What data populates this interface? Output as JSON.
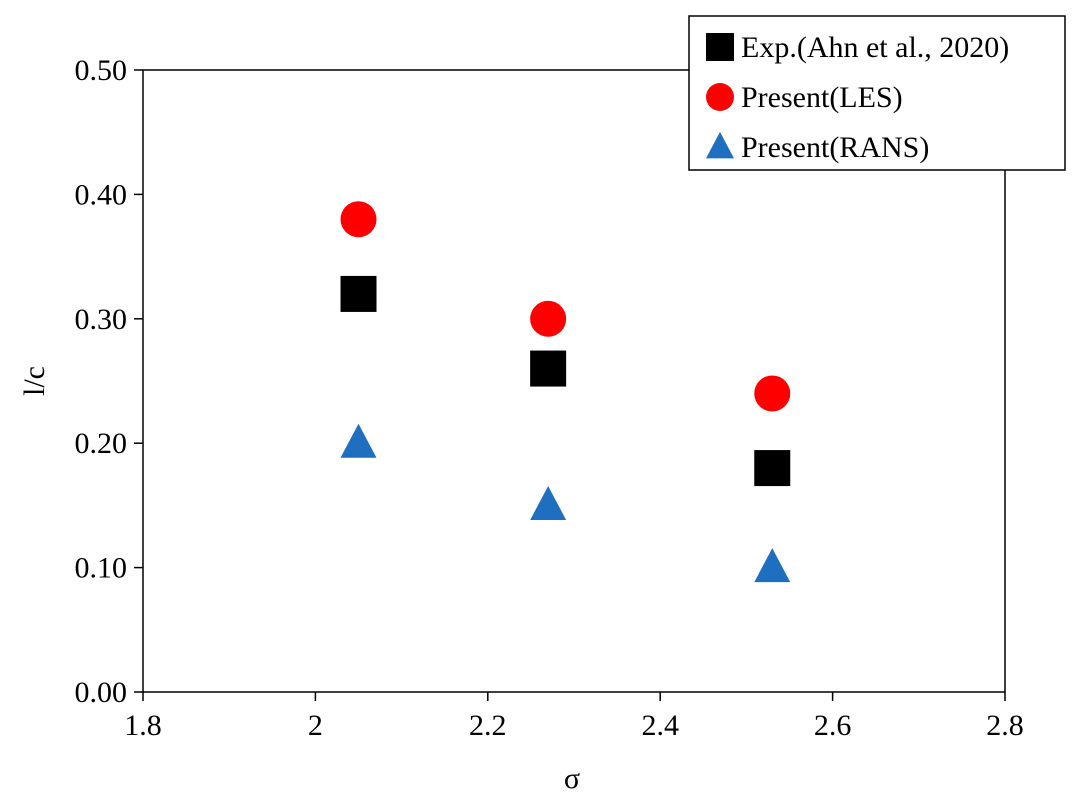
{
  "chart_data": {
    "type": "scatter",
    "title": "",
    "xlabel": "σ",
    "ylabel": "l/c",
    "xlim": [
      1.8,
      2.8
    ],
    "ylim": [
      0.0,
      0.5
    ],
    "xticks": [
      "1.8",
      "2",
      "2.2",
      "2.4",
      "2.6",
      "2.8"
    ],
    "xtick_values": [
      1.8,
      2.0,
      2.2,
      2.4,
      2.6,
      2.8
    ],
    "yticks": [
      "0.00",
      "0.10",
      "0.20",
      "0.30",
      "0.40",
      "0.50"
    ],
    "ytick_values": [
      0.0,
      0.1,
      0.2,
      0.3,
      0.4,
      0.5
    ],
    "grid": false,
    "legend_position": "top-right",
    "series": [
      {
        "name": "Exp.(Ahn et al., 2020)",
        "marker": "square",
        "color": "#000000",
        "x": [
          2.05,
          2.27,
          2.53
        ],
        "y": [
          0.32,
          0.26,
          0.18
        ]
      },
      {
        "name": "Present(LES)",
        "marker": "circle",
        "color": "#ff0000",
        "x": [
          2.05,
          2.27,
          2.53
        ],
        "y": [
          0.38,
          0.3,
          0.24
        ]
      },
      {
        "name": "Present(RANS)",
        "marker": "triangle",
        "color": "#1f6fc0",
        "x": [
          2.05,
          2.27,
          2.53
        ],
        "y": [
          0.2,
          0.15,
          0.1
        ]
      }
    ]
  }
}
